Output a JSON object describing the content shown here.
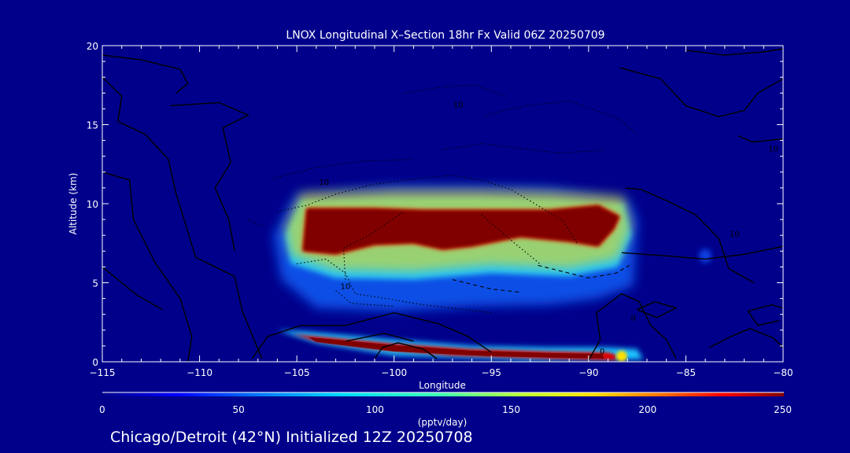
{
  "chart_data": {
    "type": "heatmap",
    "title": "LNOX Longitudinal X–Section 18hr  Fx Valid 06Z 20250709",
    "xlabel": "Longitude",
    "ylabel": "Altitude (km)",
    "xlim": [
      -115,
      -80
    ],
    "ylim": [
      0,
      20
    ],
    "x_ticks": [
      "−115",
      "−110",
      "−105",
      "−100",
      "−95",
      "−90",
      "−85",
      "−80"
    ],
    "y_ticks": [
      "0",
      "5",
      "10",
      "15",
      "20"
    ],
    "colorbar": {
      "label": "(pptv/day)",
      "range": [
        0,
        250
      ],
      "ticks": [
        "0",
        "50",
        "100",
        "150",
        "200",
        "250"
      ]
    },
    "contour_labels": [
      "10",
      "10",
      "10",
      "10",
      "0",
      "0",
      "10"
    ],
    "colors": {
      "background": "#00008b",
      "text": "#ffffff",
      "max": "#800000"
    },
    "features": [
      {
        "name": "upper LNOx layer",
        "lon": [
          -105,
          -87.5
        ],
        "alt": [
          6.5,
          10
        ],
        "peak": 250
      },
      {
        "name": "surface LNOx layer",
        "lon": [
          -105.5,
          -88.5
        ],
        "alt": [
          0,
          1.9
        ],
        "peak": 250
      }
    ]
  },
  "footer": "Chicago/Detroit (42°N) Initialized 12Z 20250708"
}
